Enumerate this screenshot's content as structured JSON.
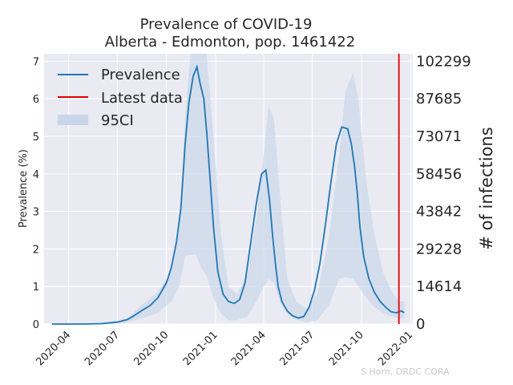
{
  "chart_data": {
    "type": "line",
    "title": "Prevalence of COVID-19",
    "subtitle": "Alberta - Edmonton, pop. 1461422",
    "ylabel": "Prevalence (%)",
    "ylabel_right": "# of infections",
    "ylim": [
      0,
      7.2
    ],
    "yticks": [
      0,
      1,
      2,
      3,
      4,
      5,
      6,
      7
    ],
    "right_yticks": [
      0,
      14614,
      29228,
      43842,
      58456,
      73071,
      87685,
      102299
    ],
    "xlim": [
      "2020-02-15",
      "2022-01-05"
    ],
    "xticks": [
      "2020-04",
      "2020-07",
      "2020-10",
      "2021-01",
      "2021-04",
      "2021-07",
      "2021-10",
      "2022-01"
    ],
    "grid": true,
    "legend_position": "top-left",
    "legend": [
      "Prevalence",
      "Latest data",
      "95CI"
    ],
    "latest_data_date": "2021-12-10",
    "colors": {
      "prevalence": "#1f77b4",
      "latest": "#e00000",
      "ci": "#c7d6e8",
      "plot_bg": "#eaeaf2",
      "grid": "#ffffff"
    },
    "series": [
      {
        "name": "Prevalence",
        "x": [
          "2020-03-01",
          "2020-04-01",
          "2020-05-01",
          "2020-06-01",
          "2020-07-01",
          "2020-07-20",
          "2020-08-01",
          "2020-08-15",
          "2020-09-01",
          "2020-09-15",
          "2020-10-01",
          "2020-10-10",
          "2020-10-20",
          "2020-10-28",
          "2020-11-05",
          "2020-11-12",
          "2020-11-20",
          "2020-11-27",
          "2020-12-03",
          "2020-12-10",
          "2020-12-16",
          "2020-12-22",
          "2020-12-28",
          "2021-01-05",
          "2021-01-15",
          "2021-01-25",
          "2021-02-05",
          "2021-02-15",
          "2021-02-25",
          "2021-03-08",
          "2021-03-18",
          "2021-03-28",
          "2021-04-05",
          "2021-04-12",
          "2021-04-18",
          "2021-04-23",
          "2021-04-28",
          "2021-05-05",
          "2021-05-15",
          "2021-05-25",
          "2021-06-05",
          "2021-06-15",
          "2021-06-25",
          "2021-07-05",
          "2021-07-15",
          "2021-07-25",
          "2021-08-05",
          "2021-08-15",
          "2021-08-25",
          "2021-09-05",
          "2021-09-12",
          "2021-09-18",
          "2021-09-23",
          "2021-09-28",
          "2021-10-05",
          "2021-10-15",
          "2021-10-25",
          "2021-11-05",
          "2021-11-15",
          "2021-11-25",
          "2021-12-05",
          "2021-12-15",
          "2021-12-20"
        ],
        "values": [
          0,
          0,
          0,
          0.01,
          0.05,
          0.12,
          0.22,
          0.35,
          0.5,
          0.7,
          1.1,
          1.5,
          2.2,
          3.1,
          4.8,
          5.9,
          6.6,
          6.85,
          6.4,
          6.0,
          5.0,
          3.8,
          2.6,
          1.4,
          0.8,
          0.6,
          0.55,
          0.65,
          1.1,
          2.2,
          3.2,
          4.0,
          4.1,
          3.3,
          2.3,
          1.6,
          1.0,
          0.6,
          0.35,
          0.22,
          0.16,
          0.2,
          0.45,
          0.9,
          1.6,
          2.6,
          3.8,
          4.8,
          5.25,
          5.2,
          4.8,
          4.2,
          3.5,
          2.6,
          1.8,
          1.2,
          0.85,
          0.6,
          0.45,
          0.33,
          0.3,
          0.35,
          0.3
        ]
      },
      {
        "name": "95CI",
        "x": [
          "2020-03-01",
          "2020-06-01",
          "2020-07-20",
          "2020-08-15",
          "2020-09-15",
          "2020-10-10",
          "2020-10-25",
          "2020-11-05",
          "2020-11-15",
          "2020-11-25",
          "2020-12-05",
          "2020-12-15",
          "2020-12-28",
          "2021-01-10",
          "2021-01-25",
          "2021-02-10",
          "2021-03-01",
          "2021-03-18",
          "2021-04-01",
          "2021-04-10",
          "2021-04-20",
          "2021-05-01",
          "2021-05-15",
          "2021-06-01",
          "2021-06-20",
          "2021-07-10",
          "2021-08-01",
          "2021-08-20",
          "2021-09-01",
          "2021-09-15",
          "2021-09-25",
          "2021-10-10",
          "2021-10-25",
          "2021-11-10",
          "2021-11-25",
          "2021-12-10",
          "2021-12-20"
        ],
        "lower": [
          0,
          0,
          0.05,
          0.15,
          0.3,
          0.6,
          1.0,
          1.8,
          1.85,
          1.85,
          1.5,
          1.3,
          0.7,
          0.3,
          0.1,
          0.1,
          0.2,
          0.6,
          1.0,
          1.2,
          1.1,
          0.6,
          0.25,
          0.1,
          0.05,
          0.1,
          0.5,
          1.2,
          1.25,
          1.2,
          1.0,
          0.7,
          0.45,
          0.3,
          0.2,
          0.15,
          0.15
        ],
        "upper": [
          0,
          0.02,
          0.15,
          0.5,
          0.85,
          1.4,
          2.5,
          5.5,
          7.2,
          7.2,
          7.2,
          7.2,
          5.0,
          2.5,
          1.0,
          0.8,
          1.3,
          2.8,
          4.5,
          5.8,
          5.5,
          3.5,
          1.2,
          0.6,
          0.4,
          0.8,
          2.3,
          4.5,
          6.2,
          6.7,
          6.0,
          3.8,
          2.4,
          1.4,
          0.9,
          0.6,
          0.6
        ]
      }
    ]
  },
  "credit": "S Horn, DRDC CORA"
}
